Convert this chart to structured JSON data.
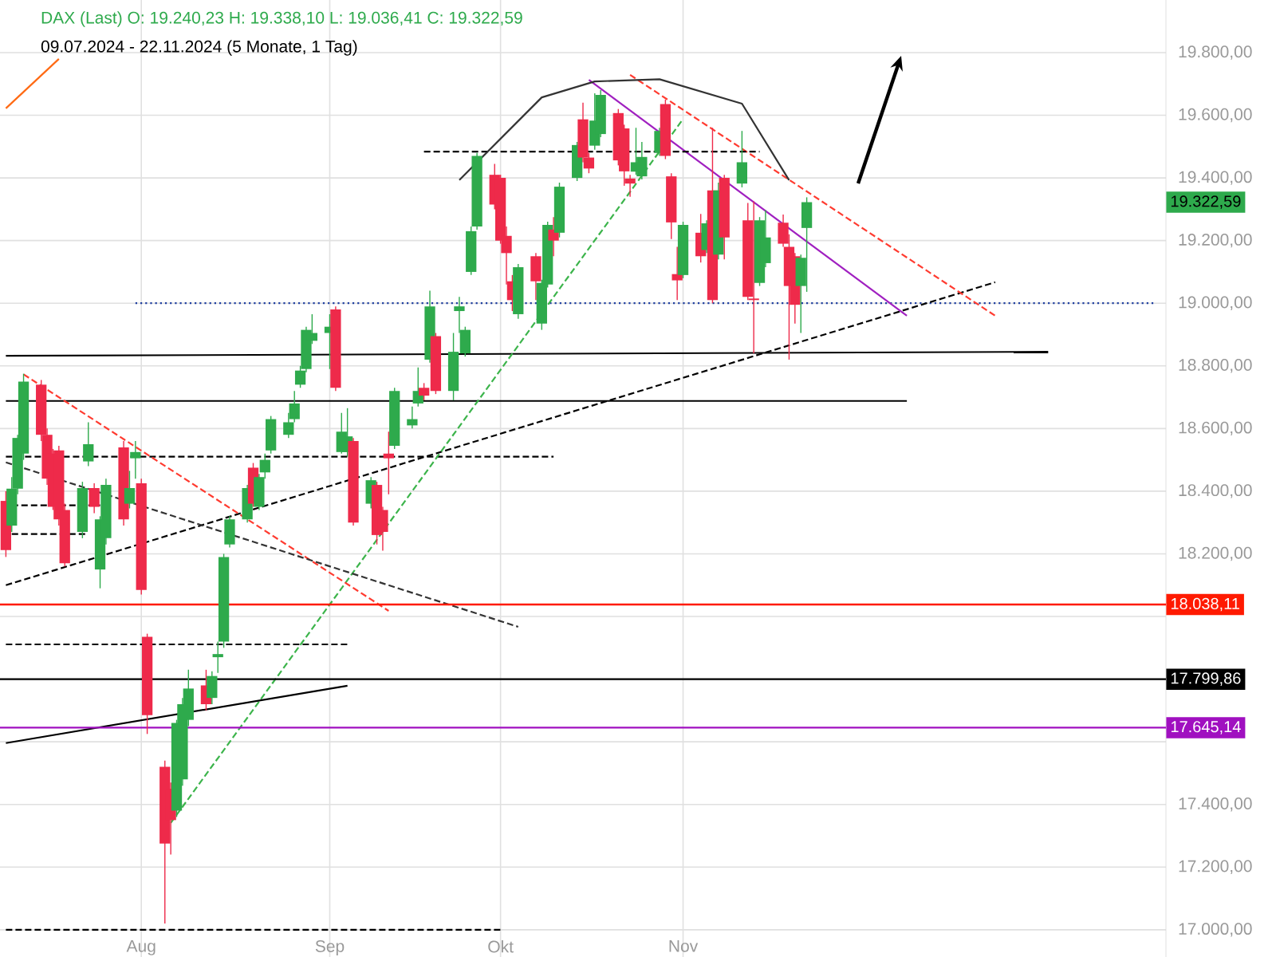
{
  "chart_data": {
    "type": "candlestick",
    "title": "DAX (Last)  O: 19.240,23  H: 19.338,10  L: 19.036,41  C: 19.322,59",
    "subtitle": "09.07.2024 - 22.11.2024  (5 Monate, 1 Tag)",
    "xlim": [
      "2024-07-08",
      "2025-01-22"
    ],
    "xticks": [
      {
        "value": "2024-08-01",
        "label": "Aug"
      },
      {
        "value": "2024-09-02",
        "label": "Sep"
      },
      {
        "value": "2024-10-01",
        "label": "Okt"
      },
      {
        "value": "2024-11-01",
        "label": "Nov"
      }
    ],
    "ylim": [
      16913,
      19968
    ],
    "yticks": [
      {
        "value": 17000,
        "label": "17.000,00"
      },
      {
        "value": 17200,
        "label": "17.200,00"
      },
      {
        "value": 17400,
        "label": "17.400,00"
      },
      {
        "value": 17600,
        "label": null
      },
      {
        "value": 17800,
        "label": null
      },
      {
        "value": 18000,
        "label": null
      },
      {
        "value": 18200,
        "label": "18.200,00"
      },
      {
        "value": 18400,
        "label": "18.400,00"
      },
      {
        "value": 18600,
        "label": "18.600,00"
      },
      {
        "value": 18800,
        "label": "18.800,00"
      },
      {
        "value": 19000,
        "label": "19.000,00"
      },
      {
        "value": 19200,
        "label": "19.200,00"
      },
      {
        "value": 19400,
        "label": "19.400,00"
      },
      {
        "value": 19600,
        "label": "19.600,00"
      },
      {
        "value": 19800,
        "label": "19.800,00"
      }
    ],
    "grid": true,
    "ref_lines": [
      {
        "axis": "y",
        "value": 18038.11,
        "label": "18.038,11",
        "color": "#ff1a00",
        "line_style": "solid"
      },
      {
        "axis": "y",
        "value": 17799.86,
        "label": "17.799,86",
        "color": "#000000",
        "line_style": "solid"
      },
      {
        "axis": "y",
        "value": 17645.14,
        "label": "17.645,14",
        "color": "#a010c0",
        "line_style": "solid"
      }
    ],
    "annotations": [
      "19.322,59"
    ],
    "series": [
      {
        "x": [
          "2024-07-09",
          "2024-07-10",
          "2024-07-11",
          "2024-07-12",
          "2024-07-15",
          "2024-07-16",
          "2024-07-17",
          "2024-07-18",
          "2024-07-19",
          "2024-07-22",
          "2024-07-23",
          "2024-07-24",
          "2024-07-25",
          "2024-07-26",
          "2024-07-29",
          "2024-07-30",
          "2024-07-31",
          "2024-08-01",
          "2024-08-02",
          "2024-08-05",
          "2024-08-06",
          "2024-08-07",
          "2024-08-08",
          "2024-08-09",
          "2024-08-12",
          "2024-08-13",
          "2024-08-14",
          "2024-08-15",
          "2024-08-16",
          "2024-08-19",
          "2024-08-20",
          "2024-08-21",
          "2024-08-22",
          "2024-08-23",
          "2024-08-26",
          "2024-08-27",
          "2024-08-28",
          "2024-08-29",
          "2024-08-30",
          "2024-09-02",
          "2024-09-03",
          "2024-09-04",
          "2024-09-05",
          "2024-09-06",
          "2024-09-09",
          "2024-09-10",
          "2024-09-11",
          "2024-09-12",
          "2024-09-13",
          "2024-09-16",
          "2024-09-17",
          "2024-09-18",
          "2024-09-19",
          "2024-09-20",
          "2024-09-23",
          "2024-09-24",
          "2024-09-25",
          "2024-09-26",
          "2024-09-27",
          "2024-09-30",
          "2024-10-01",
          "2024-10-02",
          "2024-10-03",
          "2024-10-04",
          "2024-10-07",
          "2024-10-08",
          "2024-10-09",
          "2024-10-10",
          "2024-10-11",
          "2024-10-14",
          "2024-10-15",
          "2024-10-16",
          "2024-10-17",
          "2024-10-18",
          "2024-10-21",
          "2024-10-22",
          "2024-10-23",
          "2024-10-24",
          "2024-10-25",
          "2024-10-28",
          "2024-10-29",
          "2024-10-30",
          "2024-10-31",
          "2024-11-01",
          "2024-11-04",
          "2024-11-05",
          "2024-11-06",
          "2024-11-07",
          "2024-11-08",
          "2024-11-11",
          "2024-11-12",
          "2024-11-13",
          "2024-11-14",
          "2024-11-15",
          "2024-11-18",
          "2024-11-19",
          "2024-11-20",
          "2024-11-21",
          "2024-11-22"
        ],
        "ohlc": [
          [
            18369,
            18400,
            18190,
            18212
          ],
          [
            18290,
            18445,
            18270,
            18408
          ],
          [
            18408,
            18580,
            18390,
            18570
          ],
          [
            18520,
            18775,
            18500,
            18750
          ],
          [
            18740,
            18755,
            18560,
            18580
          ],
          [
            18580,
            18600,
            18420,
            18440
          ],
          [
            18520,
            18535,
            18340,
            18350
          ],
          [
            18530,
            18545,
            18290,
            18310
          ],
          [
            18340,
            18360,
            18160,
            18170
          ],
          [
            18270,
            18430,
            18250,
            18410
          ],
          [
            18495,
            18620,
            18480,
            18550
          ],
          [
            18410,
            18425,
            18330,
            18350
          ],
          [
            18150,
            18320,
            18090,
            18310
          ],
          [
            18250,
            18440,
            18230,
            18420
          ],
          [
            18540,
            18560,
            18290,
            18310
          ],
          [
            18360,
            18465,
            18345,
            18410
          ],
          [
            18505,
            18560,
            18440,
            18525
          ],
          [
            18425,
            18440,
            18070,
            18085
          ],
          [
            17935,
            17945,
            17625,
            17685
          ],
          [
            17520,
            17540,
            17020,
            17275
          ],
          [
            17450,
            17470,
            17240,
            17350
          ],
          [
            17380,
            17670,
            17360,
            17660
          ],
          [
            17480,
            17740,
            17460,
            17720
          ],
          [
            17670,
            17830,
            17650,
            17770
          ],
          [
            17780,
            17830,
            17700,
            17720
          ],
          [
            17740,
            17825,
            17720,
            17810
          ],
          [
            17870,
            17920,
            17820,
            17880
          ],
          [
            17920,
            18200,
            17900,
            18190
          ],
          [
            18230,
            18320,
            18220,
            18310
          ],
          [
            18310,
            18420,
            18300,
            18410
          ],
          [
            18475,
            18490,
            18350,
            18360
          ],
          [
            18350,
            18455,
            18340,
            18445
          ],
          [
            18460,
            18520,
            18440,
            18500
          ],
          [
            18530,
            18640,
            18520,
            18630
          ],
          [
            18580,
            18650,
            18570,
            18620
          ],
          [
            18630,
            18720,
            18620,
            18680
          ],
          [
            18740,
            18800,
            18730,
            18785
          ],
          [
            18790,
            18925,
            18780,
            18915
          ],
          [
            18880,
            18965,
            18870,
            18905
          ],
          [
            18905,
            18965,
            18790,
            18925
          ],
          [
            18980,
            18990,
            18720,
            18730
          ],
          [
            18525,
            18650,
            18520,
            18590
          ],
          [
            18525,
            18665,
            18510,
            18575
          ],
          [
            18560,
            18570,
            18290,
            18300
          ],
          [
            18360,
            18445,
            18345,
            18435
          ],
          [
            18420,
            18430,
            18230,
            18260
          ],
          [
            18340,
            18350,
            18210,
            18270
          ],
          [
            18520,
            18590,
            18390,
            18505
          ],
          [
            18545,
            18730,
            18535,
            18720
          ],
          [
            18610,
            18670,
            18600,
            18630
          ],
          [
            18680,
            18795,
            18670,
            18720
          ],
          [
            18730,
            18745,
            18690,
            18705
          ],
          [
            18820,
            19040,
            18810,
            18990
          ],
          [
            18895,
            18905,
            18710,
            18720
          ],
          [
            18720,
            18905,
            18690,
            18845
          ],
          [
            18975,
            19020,
            18905,
            18990
          ],
          [
            18840,
            18925,
            18830,
            18915
          ],
          [
            19100,
            19245,
            19090,
            19230
          ],
          [
            19245,
            19480,
            19235,
            19470
          ],
          [
            19410,
            19445,
            19300,
            19315
          ],
          [
            19400,
            19410,
            19190,
            19200
          ],
          [
            19215,
            19245,
            19060,
            19160
          ],
          [
            19070,
            19090,
            18975,
            19010
          ],
          [
            18965,
            19125,
            18950,
            19115
          ],
          [
            19150,
            19160,
            19010,
            19070
          ],
          [
            18935,
            19075,
            18915,
            19065
          ],
          [
            19060,
            19260,
            19050,
            19250
          ],
          [
            19235,
            19275,
            19150,
            19200
          ],
          [
            19225,
            19385,
            19210,
            19372
          ],
          [
            19400,
            19515,
            19390,
            19505
          ],
          [
            19587,
            19640,
            19450,
            19465
          ],
          [
            19465,
            19480,
            19415,
            19430
          ],
          [
            19503,
            19670,
            19490,
            19583
          ],
          [
            19540,
            19680,
            19530,
            19665
          ],
          [
            19607,
            19620,
            19440,
            19456
          ],
          [
            19558,
            19570,
            19375,
            19421
          ],
          [
            19398,
            19410,
            19340,
            19382
          ],
          [
            19420,
            19560,
            19410,
            19450
          ],
          [
            19405,
            19515,
            19395,
            19467
          ],
          [
            19480,
            19560,
            19470,
            19550
          ],
          [
            19636,
            19650,
            19460,
            19470
          ],
          [
            19405,
            19415,
            19205,
            19258
          ],
          [
            19093,
            19180,
            19010,
            19073
          ],
          [
            19090,
            19260,
            19080,
            19250
          ],
          [
            19225,
            19285,
            19130,
            19150
          ],
          [
            19170,
            19265,
            19160,
            19255
          ],
          [
            19360,
            19560,
            19000,
            19010
          ],
          [
            19155,
            19385,
            19140,
            19360
          ],
          [
            19400,
            19410,
            19140,
            19210
          ],
          [
            19382,
            19550,
            19370,
            19450
          ],
          [
            19265,
            19320,
            19010,
            19020
          ],
          [
            19015,
            19325,
            18840,
            19010
          ],
          [
            19065,
            19275,
            19055,
            19265
          ],
          [
            19128,
            19297,
            19115,
            19210
          ],
          [
            19257,
            19283,
            19180,
            19190
          ],
          [
            19180,
            19220,
            18820,
            19055
          ],
          [
            19150,
            19160,
            18935,
            18995
          ],
          [
            19055,
            19155,
            18905,
            19145
          ],
          [
            19240.23,
            19338.1,
            19036.41,
            19322.59
          ]
        ]
      },
      {
        "type": "line",
        "x": [
          "2024-07-31",
          "2025-01-20"
        ],
        "values": [
          19000,
          19000
        ],
        "color": "#1f3f9f",
        "line_style": "dotted"
      },
      {
        "type": "line",
        "x": [
          "2024-07-09",
          "2025-01-02"
        ],
        "values": [
          18832,
          18845
        ],
        "color": "#000000",
        "line_style": "solid"
      },
      {
        "type": "line",
        "x": [
          "2024-07-09",
          "2024-12-09"
        ],
        "values": [
          18688,
          18688
        ],
        "color": "#000000",
        "line_style": "solid"
      },
      {
        "type": "line",
        "x": [
          "2024-07-09",
          "2024-10-10"
        ],
        "values": [
          18510,
          18510
        ],
        "color": "#000000",
        "line_style": "dashed"
      },
      {
        "type": "line",
        "x": [
          "2024-07-09",
          "2024-12-24"
        ],
        "values": [
          18100,
          19067
        ],
        "color": "#000000",
        "line_style": "dashed"
      },
      {
        "type": "line",
        "x": [
          "2024-08-06",
          "2024-11-01"
        ],
        "values": [
          17341,
          19588
        ],
        "color": "#3cb44b",
        "line_style": "dashed"
      },
      {
        "type": "line",
        "x": [
          "2024-10-16",
          "2024-12-09"
        ],
        "values": [
          19713,
          18960
        ],
        "color": "#a020c0",
        "line_style": "solid"
      },
      {
        "type": "line",
        "x": [
          "2024-10-23",
          "2024-12-24"
        ],
        "values": [
          19729,
          18960
        ],
        "color": "#ff3b30",
        "line_style": "dashed"
      },
      {
        "type": "line",
        "x": [
          "2024-07-12",
          "2024-09-12"
        ],
        "values": [
          18773,
          18018
        ],
        "color": "#ff3b30",
        "line_style": "dashed"
      },
      {
        "type": "line",
        "x": [
          "2024-07-09",
          "2024-10-04"
        ],
        "values": [
          18492,
          17967
        ],
        "color": "#333333",
        "line_style": "dashed"
      },
      {
        "type": "line",
        "x": [
          "2024-07-10",
          "2024-07-25"
        ],
        "values": [
          18355,
          18355
        ],
        "color": "#000000",
        "line_style": "dashed"
      },
      {
        "type": "line",
        "x": [
          "2024-07-10",
          "2024-07-23"
        ],
        "values": [
          18263,
          18263
        ],
        "color": "#000000",
        "line_style": "dashed"
      },
      {
        "type": "line",
        "x": [
          "2024-07-09",
          "2024-09-05"
        ],
        "values": [
          17911,
          17911
        ],
        "color": "#000000",
        "line_style": "dashed"
      },
      {
        "type": "line",
        "x": [
          "2024-07-09",
          "2024-10-01"
        ],
        "values": [
          17000,
          17000
        ],
        "color": "#000000",
        "line_style": "dashed"
      },
      {
        "type": "line",
        "x": [
          "2024-09-18",
          "2024-11-14"
        ],
        "values": [
          19484,
          19484
        ],
        "color": "#000000",
        "line_style": "dashed"
      },
      {
        "type": "line",
        "x": [
          "2024-07-09",
          "2024-09-05"
        ],
        "values": [
          17596,
          17779
        ],
        "color": "#000000",
        "line_style": "solid"
      },
      {
        "type": "line",
        "x": [
          "2024-09-24",
          "2024-10-08",
          "2024-10-17",
          "2024-10-28",
          "2024-11-11",
          "2024-11-19"
        ],
        "values": [
          19393,
          19657,
          19708,
          19715,
          19637,
          19393
        ],
        "color": "#333333",
        "line_style": "solid"
      },
      {
        "type": "line",
        "x": [
          "2024-07-09",
          "2024-07-18"
        ],
        "values": [
          19622,
          19780
        ],
        "color": "#ff6a13",
        "line_style": "solid"
      }
    ]
  }
}
